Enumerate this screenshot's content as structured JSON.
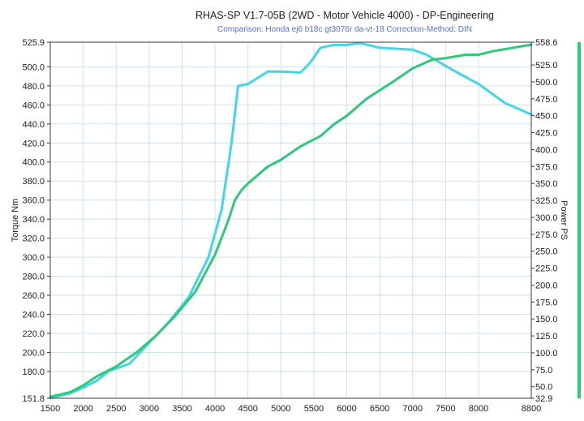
{
  "header": {
    "title": "RHAS-SP V1.7-05B   (2WD - Motor Vehicle 4000) - DP-Engineering",
    "subtitle": "Comparison: Honda ej6 b18c gt3076r da-vt-18    Correction-Method: DIN"
  },
  "colors": {
    "torque": "#44d6e8",
    "power": "#2fc97a",
    "grid": "#cfe0ee",
    "frame": "#3a3a3a"
  },
  "chart_data": {
    "type": "line",
    "title": "RHAS-SP V1.7-05B   (2WD - Motor Vehicle 4000) - DP-Engineering",
    "subtitle": "Comparison: Honda ej6 b18c gt3076r da-vt-18    Correction-Method: DIN",
    "xlabel": "",
    "ylabel": "Torque Nm",
    "y2label": "Power PS",
    "xlim": [
      1500,
      8800
    ],
    "ylim": [
      151.8,
      525.9
    ],
    "y2lim": [
      32.9,
      558.6
    ],
    "x_ticks": [
      "1500",
      "2000",
      "2500",
      "3000",
      "3500",
      "4000",
      "4500",
      "5000",
      "5500",
      "6000",
      "6500",
      "7000",
      "7500",
      "8000",
      "8800"
    ],
    "y_ticks": [
      "525.9",
      "500.0",
      "480.0",
      "460.0",
      "440.0",
      "420.0",
      "400.0",
      "380.0",
      "360.0",
      "340.0",
      "320.0",
      "300.0",
      "280.0",
      "260.0",
      "240.0",
      "220.0",
      "200.0",
      "180.0",
      "151.8"
    ],
    "y2_ticks": [
      "558.6",
      "525.0",
      "500.0",
      "475.0",
      "450.0",
      "425.0",
      "400.0",
      "375.0",
      "350.0",
      "325.0",
      "300.0",
      "275.0",
      "250.0",
      "225.0",
      "200.0",
      "175.0",
      "150.0",
      "125.0",
      "100.0",
      "75.0",
      "50.0",
      "32.9"
    ],
    "grid": true,
    "series": [
      {
        "name": "",
        "axis": "left",
        "color": "#44d6e8",
        "x": [
          1500,
          1800,
          2000,
          2200,
          2400,
          2500,
          2700,
          3000,
          3300,
          3600,
          3900,
          4100,
          4250,
          4350,
          4500,
          4800,
          5000,
          5300,
          5450,
          5600,
          5800,
          6000,
          6200,
          6500,
          7000,
          7200,
          7400,
          7600,
          8000,
          8400,
          8800
        ],
        "y": [
          152,
          157,
          163,
          170,
          181,
          183,
          188,
          210,
          232,
          258,
          300,
          350,
          420,
          480,
          482,
          495,
          495,
          494,
          505,
          520,
          523,
          523,
          525,
          520,
          518,
          513,
          505,
          497,
          482,
          462,
          450
        ]
      },
      {
        "name": "",
        "axis": "right",
        "color": "#2fc97a",
        "x": [
          1500,
          1800,
          2000,
          2200,
          2500,
          2800,
          3100,
          3400,
          3700,
          4000,
          4200,
          4300,
          4400,
          4500,
          4800,
          5000,
          5300,
          5600,
          5800,
          6000,
          6300,
          6700,
          7000,
          7300,
          7500,
          7800,
          8000,
          8200,
          8500,
          8800
        ],
        "y": [
          35,
          42,
          52,
          65,
          80,
          100,
          125,
          155,
          190,
          245,
          295,
          325,
          340,
          350,
          375,
          385,
          405,
          420,
          437,
          450,
          475,
          500,
          520,
          533,
          535,
          540,
          540,
          545,
          550,
          555
        ]
      }
    ]
  }
}
